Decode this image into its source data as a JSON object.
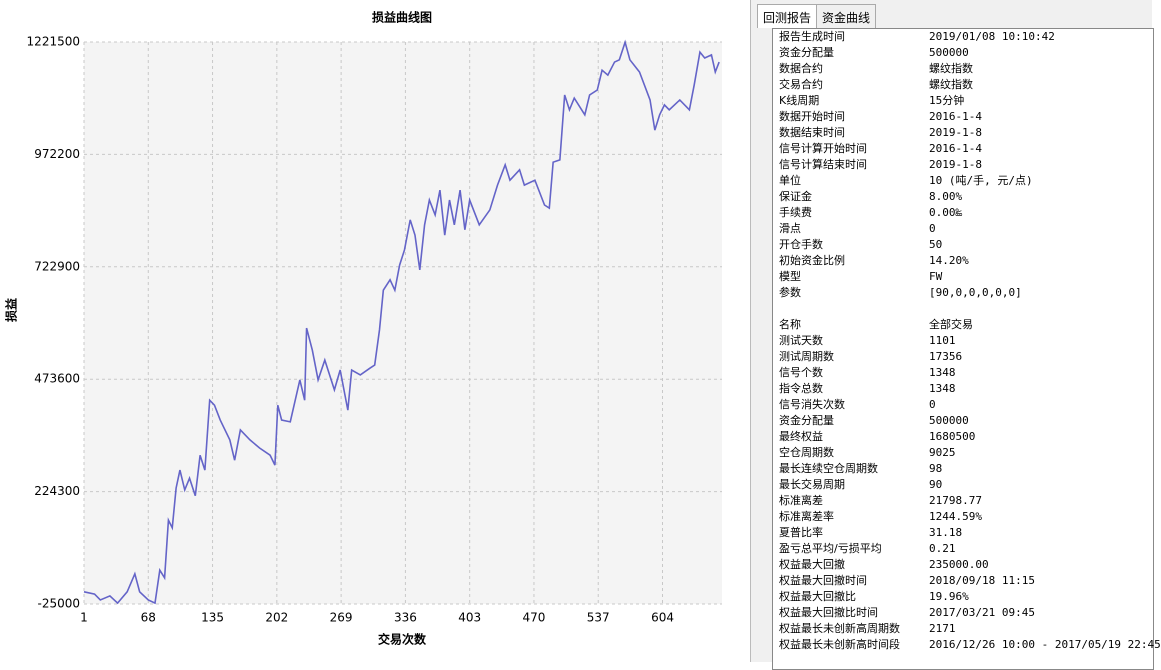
{
  "chart_data": {
    "type": "line",
    "title": "损益曲线图",
    "x_label": "交易次数",
    "y_label": "损益",
    "x": [
      1,
      12,
      18,
      28,
      36,
      46,
      54,
      59,
      68,
      75,
      80,
      85,
      89,
      93,
      97,
      101,
      106,
      111,
      117,
      122,
      127,
      132,
      137,
      143,
      153,
      158,
      164,
      174,
      184,
      195,
      200,
      203,
      207,
      216,
      226,
      231,
      233,
      239,
      245,
      252,
      262,
      268,
      276,
      280,
      289,
      299,
      304,
      309,
      313,
      320,
      325,
      330,
      335,
      341,
      346,
      351,
      356,
      361,
      367,
      372,
      377,
      382,
      387,
      393,
      398,
      403,
      413,
      424,
      432,
      440,
      445,
      455,
      460,
      471,
      481,
      486,
      490,
      497,
      502,
      507,
      512,
      523,
      528,
      536,
      541,
      547,
      554,
      559,
      565,
      570,
      580,
      591,
      596,
      601,
      606,
      611,
      622,
      632,
      637,
      643,
      648,
      655,
      659,
      663
    ],
    "series": [
      {
        "name": "损益",
        "color": "#6464c8",
        "values": [
          2000,
          -3000,
          -16000,
          -7000,
          -23000,
          2000,
          42000,
          2000,
          -16000,
          -23000,
          50000,
          33000,
          161000,
          144000,
          232000,
          272000,
          228000,
          254000,
          215000,
          305000,
          272000,
          427000,
          416000,
          383000,
          339000,
          294000,
          361000,
          339000,
          321000,
          305000,
          283000,
          416000,
          383000,
          379000,
          472000,
          427000,
          587000,
          538000,
          472000,
          516000,
          450000,
          494000,
          405000,
          494000,
          483000,
          498000,
          505000,
          583000,
          671000,
          694000,
          671000,
          727000,
          760000,
          827000,
          793000,
          716000,
          816000,
          871000,
          838000,
          893000,
          793000,
          871000,
          816000,
          893000,
          805000,
          871000,
          816000,
          849000,
          904000,
          949000,
          915000,
          938000,
          904000,
          915000,
          860000,
          853000,
          955000,
          960000,
          1104000,
          1071000,
          1097000,
          1060000,
          1104000,
          1115000,
          1159000,
          1148000,
          1177000,
          1182000,
          1221000,
          1182000,
          1155000,
          1093000,
          1026000,
          1060000,
          1082000,
          1071000,
          1093000,
          1071000,
          1126000,
          1199000,
          1186000,
          1193000,
          1155000,
          1177000
        ]
      }
    ],
    "xlim": [
      1,
      666
    ],
    "xticks": [
      1,
      68,
      135,
      202,
      269,
      336,
      403,
      470,
      537,
      604
    ],
    "ylim": [
      -25000,
      1221500
    ],
    "yticks": [
      -25000,
      224300,
      473600,
      722900,
      972200,
      1221500
    ],
    "grid": true
  },
  "tabs": [
    "回测报告",
    "资金曲线"
  ],
  "report": {
    "rows": [
      [
        "报告生成时间",
        "2019/01/08 10:10:42"
      ],
      [
        "资金分配量",
        "500000"
      ],
      [
        "数据合约",
        "螺纹指数"
      ],
      [
        "交易合约",
        "螺纹指数"
      ],
      [
        "K线周期",
        "15分钟"
      ],
      [
        "数据开始时间",
        "2016-1-4"
      ],
      [
        "数据结束时间",
        "2019-1-8"
      ],
      [
        "信号计算开始时间",
        "2016-1-4"
      ],
      [
        "信号计算结束时间",
        "2019-1-8"
      ],
      [
        "单位",
        "10 (吨/手, 元/点)"
      ],
      [
        "保证金",
        "8.00%"
      ],
      [
        "手续费",
        "0.00‱"
      ],
      [
        "滑点",
        "0"
      ],
      [
        "开仓手数",
        "50"
      ],
      [
        "初始资金比例",
        "14.20%"
      ],
      [
        "模型",
        "FW"
      ],
      [
        "参数",
        "[90,0,0,0,0,0]"
      ],
      null,
      [
        "名称",
        "全部交易"
      ],
      [
        "测试天数",
        "1101"
      ],
      [
        "测试周期数",
        "17356"
      ],
      [
        "信号个数",
        "1348"
      ],
      [
        "指令总数",
        "1348"
      ],
      [
        "信号消失次数",
        "0"
      ],
      [
        "资金分配量",
        "500000"
      ],
      [
        "最终权益",
        "1680500"
      ],
      [
        "空仓周期数",
        "9025"
      ],
      [
        "最长连续空仓周期数",
        "98"
      ],
      [
        "最长交易周期",
        "90"
      ],
      [
        "标准离差",
        "21798.77"
      ],
      [
        "标准离差率",
        "1244.59%"
      ],
      [
        "夏普比率",
        "31.18"
      ],
      [
        "盈亏总平均/亏损平均",
        "0.21"
      ],
      [
        "权益最大回撤",
        "235000.00"
      ],
      [
        "权益最大回撤时间",
        "2018/09/18 11:15"
      ],
      [
        "权益最大回撤比",
        "19.96%"
      ],
      [
        "权益最大回撤比时间",
        "2017/03/21 09:45"
      ],
      [
        "权益最长未创新高周期数",
        "2171"
      ],
      [
        "权益最长未创新高时间段",
        "2016/12/26 10:00 - 2017/05/19 22:45"
      ]
    ]
  }
}
